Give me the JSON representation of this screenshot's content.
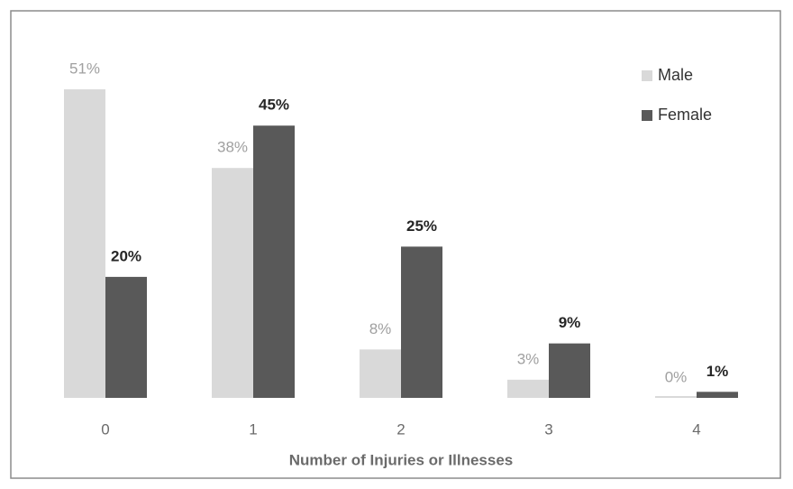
{
  "chart_data": {
    "type": "bar",
    "x_label": "Number of Injuries or Illnesses",
    "categories": [
      "0",
      "1",
      "2",
      "3",
      "4"
    ],
    "series": [
      {
        "name": "Male",
        "color": "#d9d9d9",
        "values": [
          51,
          38,
          8,
          3,
          0
        ],
        "value_labels": [
          "51%",
          "38%",
          "8%",
          "3%",
          "0%"
        ]
      },
      {
        "name": "Female",
        "color": "#595959",
        "values": [
          20,
          45,
          25,
          9,
          1
        ],
        "value_labels": [
          "20%",
          "45%",
          "25%",
          "9%",
          "1%"
        ]
      }
    ],
    "legend": "top-right"
  }
}
